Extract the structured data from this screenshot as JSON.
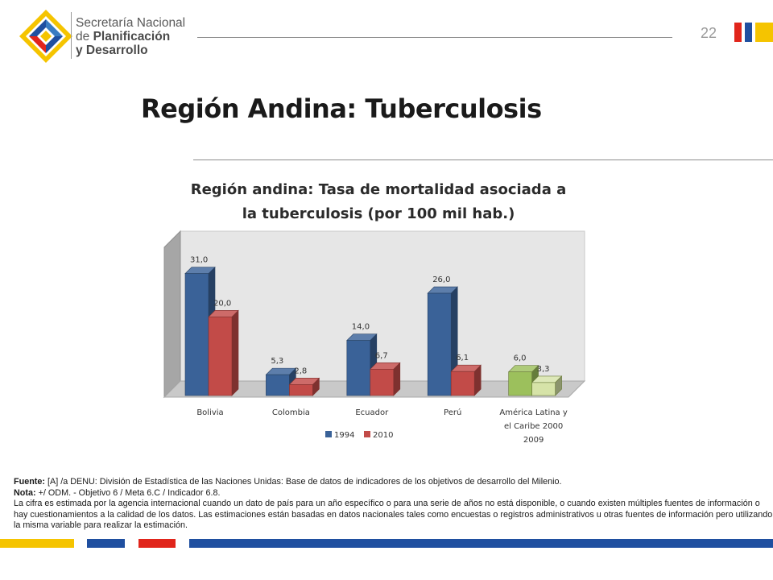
{
  "header": {
    "org_line1": "Secretaría Nacional",
    "org_line2_prefix": "de ",
    "org_line2_bold": "Planificación",
    "org_line3": "y Desarrollo",
    "page_number": "22"
  },
  "slide_title": "Región Andina: Tuberculosis",
  "chart_title_line1": "Región andina: Tasa de mortalidad asociada a",
  "chart_title_line2": "la tuberculosis (por 100 mil hab.)",
  "chart_data": {
    "type": "bar",
    "title": "Región andina: Tasa de mortalidad asociada a la tuberculosis (por 100 mil hab.)",
    "categories": [
      "Bolivia",
      "Colombia",
      "Ecuador",
      "Perú",
      "América Latina y el Caribe 2000 2009"
    ],
    "category_lines": [
      [
        "Bolivia"
      ],
      [
        "Colombia"
      ],
      [
        "Ecuador"
      ],
      [
        "Perú"
      ],
      [
        "América Latina y",
        "el Caribe 2000",
        "2009"
      ]
    ],
    "series": [
      {
        "name": "1994",
        "values": [
          31.0,
          5.3,
          14.0,
          26.0,
          6.0
        ]
      },
      {
        "name": "2010",
        "values": [
          20.0,
          2.8,
          6.7,
          6.1,
          3.3
        ]
      }
    ],
    "data_labels": [
      [
        "31,0",
        "5,3",
        "14,0",
        "26,0",
        "6,0"
      ],
      [
        "20,0",
        "2,8",
        "6,7",
        "6,1",
        "3,3"
      ]
    ],
    "ylim": [
      0,
      34
    ],
    "grid": false,
    "legend_position": "bottom",
    "colors": {
      "1994": "#3a6298",
      "2010": "#c24b48",
      "highlight_1994": "#9cc05c",
      "highlight_2010": "#d6e3a8"
    }
  },
  "footer": {
    "source_label": "Fuente:",
    "source_text": " [A] /a DENU: División de Estadística de las Naciones Unidas: Base de datos de indicadores de los objetivos de desarrollo del Milenio.",
    "note_label": "Nota:",
    "note_text": " +/ ODM. - Objetivo 6 / Meta 6.C / Indicador 6.8.",
    "note_body": "La cifra es estimada por la agencia internacional cuando un dato de país para un año específico o para una serie de años no está disponible, o cuando existen múltiples fuentes de información o hay cuestionamientos a la calidad de los datos. Las estimaciones están basadas en datos nacionales tales como encuestas o registros administrativos u otras fuentes de información pero utilizando la misma variable para realizar la estimación."
  },
  "brand_colors": {
    "yellow": "#f5c400",
    "blue": "#1f4fa0",
    "red": "#e1251b",
    "gray": "#8c8c8c"
  }
}
